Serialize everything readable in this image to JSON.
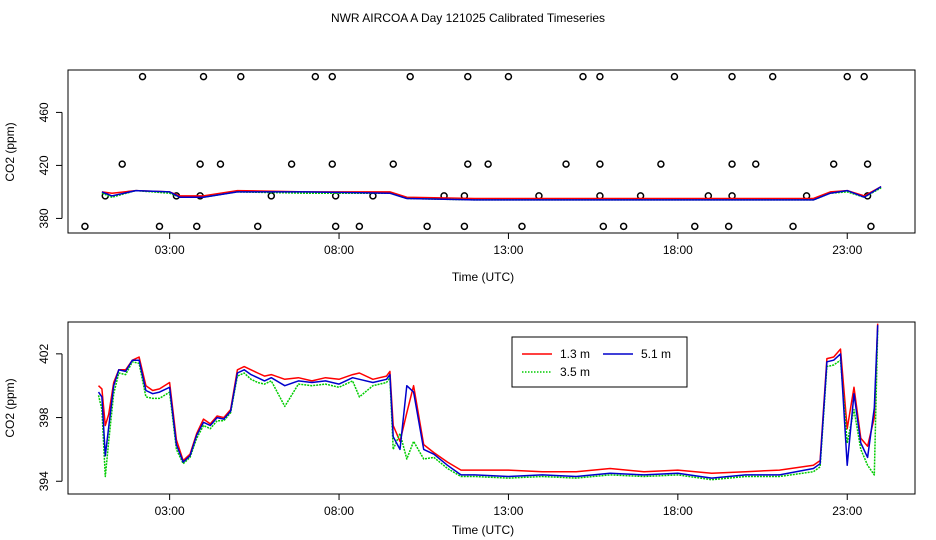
{
  "page_title": "NWR AIRCOA A  Day 121025  Calibrated Timeseries",
  "chart_data": [
    {
      "type": "line",
      "panel": "top",
      "xlabel": "Time (UTC)",
      "ylabel": "CO2 (ppm)",
      "xlim": [
        0.0,
        25.0
      ],
      "ylim": [
        369,
        492
      ],
      "xticks": [
        3,
        8,
        13,
        18,
        23
      ],
      "xtick_labels": [
        "03:00",
        "08:00",
        "13:00",
        "18:00",
        "23:00"
      ],
      "yticks": [
        380,
        420,
        460
      ],
      "ytick_labels": [
        "380",
        "420",
        "460"
      ],
      "series": [
        {
          "name": "1.3 m",
          "color": "#ff0000",
          "x": [
            1.0,
            1.3,
            2.0,
            3.0,
            3.3,
            4.0,
            5.0,
            7.0,
            9.5,
            10.0,
            12.0,
            14.0,
            16.0,
            18.0,
            20.0,
            22.0,
            22.5,
            23.0,
            23.5,
            24.0
          ],
          "y": [
            400,
            399,
            401,
            400,
            397,
            397,
            401,
            400,
            400,
            396,
            395,
            395,
            395,
            395,
            395,
            395,
            400,
            401,
            397,
            404
          ]
        },
        {
          "name": "3.5 m",
          "color": "#00cc00",
          "x": [
            1.0,
            1.3,
            2.0,
            3.0,
            3.3,
            4.0,
            5.0,
            7.0,
            9.5,
            10.0,
            12.0,
            14.0,
            16.0,
            18.0,
            20.0,
            22.0,
            22.5,
            23.0,
            23.5,
            24.0
          ],
          "y": [
            399,
            396,
            401,
            399,
            396,
            396,
            400,
            399,
            399,
            395,
            394,
            394,
            394,
            394,
            394,
            394,
            399,
            400,
            396,
            403
          ]
        },
        {
          "name": "5.1 m",
          "color": "#0000cc",
          "x": [
            1.0,
            1.3,
            2.0,
            3.0,
            3.3,
            4.0,
            5.0,
            7.0,
            9.5,
            10.0,
            12.0,
            14.0,
            16.0,
            18.0,
            20.0,
            22.0,
            22.5,
            23.0,
            23.5,
            24.0
          ],
          "y": [
            400,
            397,
            401,
            400,
            396,
            396,
            400,
            400,
            399,
            395,
            394,
            394,
            394,
            394,
            394,
            394,
            399,
            401,
            396,
            404
          ]
        }
      ],
      "cal_points": [
        {
          "x": 2.2,
          "y": 487
        },
        {
          "x": 4.0,
          "y": 487
        },
        {
          "x": 5.1,
          "y": 487
        },
        {
          "x": 7.3,
          "y": 487
        },
        {
          "x": 7.8,
          "y": 487
        },
        {
          "x": 10.1,
          "y": 487
        },
        {
          "x": 11.8,
          "y": 487
        },
        {
          "x": 13.0,
          "y": 487
        },
        {
          "x": 15.2,
          "y": 487
        },
        {
          "x": 15.7,
          "y": 487
        },
        {
          "x": 17.9,
          "y": 487
        },
        {
          "x": 19.6,
          "y": 487
        },
        {
          "x": 20.8,
          "y": 487
        },
        {
          "x": 23.0,
          "y": 487
        },
        {
          "x": 23.5,
          "y": 487
        },
        {
          "x": 1.6,
          "y": 421
        },
        {
          "x": 3.9,
          "y": 421
        },
        {
          "x": 4.5,
          "y": 421
        },
        {
          "x": 6.6,
          "y": 421
        },
        {
          "x": 7.8,
          "y": 421
        },
        {
          "x": 9.6,
          "y": 421
        },
        {
          "x": 11.8,
          "y": 421
        },
        {
          "x": 12.4,
          "y": 421
        },
        {
          "x": 14.7,
          "y": 421
        },
        {
          "x": 15.7,
          "y": 421
        },
        {
          "x": 17.5,
          "y": 421
        },
        {
          "x": 19.6,
          "y": 421
        },
        {
          "x": 20.3,
          "y": 421
        },
        {
          "x": 22.6,
          "y": 421
        },
        {
          "x": 23.6,
          "y": 421
        },
        {
          "x": 1.1,
          "y": 397
        },
        {
          "x": 3.2,
          "y": 397
        },
        {
          "x": 3.9,
          "y": 397
        },
        {
          "x": 6.0,
          "y": 397
        },
        {
          "x": 7.9,
          "y": 397
        },
        {
          "x": 9.0,
          "y": 397
        },
        {
          "x": 11.1,
          "y": 397
        },
        {
          "x": 11.7,
          "y": 397
        },
        {
          "x": 13.9,
          "y": 397
        },
        {
          "x": 15.7,
          "y": 397
        },
        {
          "x": 16.9,
          "y": 397
        },
        {
          "x": 18.9,
          "y": 397
        },
        {
          "x": 19.6,
          "y": 397
        },
        {
          "x": 21.8,
          "y": 397
        },
        {
          "x": 23.6,
          "y": 397
        },
        {
          "x": 0.5,
          "y": 374
        },
        {
          "x": 2.7,
          "y": 374
        },
        {
          "x": 3.8,
          "y": 374
        },
        {
          "x": 5.6,
          "y": 374
        },
        {
          "x": 7.9,
          "y": 374
        },
        {
          "x": 8.6,
          "y": 374
        },
        {
          "x": 10.6,
          "y": 374
        },
        {
          "x": 11.7,
          "y": 374
        },
        {
          "x": 13.4,
          "y": 374
        },
        {
          "x": 15.8,
          "y": 374
        },
        {
          "x": 16.4,
          "y": 374
        },
        {
          "x": 18.5,
          "y": 374
        },
        {
          "x": 19.5,
          "y": 374
        },
        {
          "x": 21.4,
          "y": 374
        },
        {
          "x": 23.7,
          "y": 374
        }
      ]
    },
    {
      "type": "line",
      "panel": "bottom",
      "xlabel": "Time (UTC)",
      "ylabel": "CO2 (ppm)",
      "xlim": [
        0.0,
        25.0
      ],
      "ylim": [
        393.2,
        404.0
      ],
      "xticks": [
        3,
        8,
        13,
        18,
        23
      ],
      "xtick_labels": [
        "03:00",
        "08:00",
        "13:00",
        "18:00",
        "23:00"
      ],
      "yticks": [
        394,
        398,
        402
      ],
      "ytick_labels": [
        "394",
        "398",
        "402"
      ],
      "legend_position": "top-center",
      "series": [
        {
          "name": "1.3 m",
          "color": "#ff0000",
          "x": [
            0.9,
            1.0,
            1.1,
            1.2,
            1.35,
            1.5,
            1.7,
            1.9,
            2.1,
            2.3,
            2.5,
            2.7,
            3.0,
            3.2,
            3.4,
            3.6,
            3.8,
            4.0,
            4.2,
            4.4,
            4.6,
            4.8,
            5.0,
            5.2,
            5.4,
            5.6,
            5.8,
            6.0,
            6.4,
            6.8,
            7.2,
            7.6,
            8.0,
            8.4,
            8.6,
            9.0,
            9.4,
            9.5,
            9.6,
            9.8,
            10.0,
            10.2,
            10.5,
            10.8,
            11.2,
            11.6,
            12.0,
            13.0,
            14.0,
            15.0,
            16.0,
            17.0,
            18.0,
            19.0,
            20.0,
            21.0,
            22.0,
            22.2,
            22.4,
            22.6,
            22.8,
            23.0,
            23.2,
            23.4,
            23.6,
            23.8,
            23.9
          ],
          "y": [
            400.0,
            399.8,
            397.5,
            398.2,
            400.2,
            401.0,
            401.0,
            401.6,
            401.8,
            400.0,
            399.7,
            399.8,
            400.2,
            396.6,
            395.3,
            395.7,
            397.0,
            397.9,
            397.6,
            398.1,
            398.0,
            398.5,
            401.0,
            401.2,
            401.0,
            400.8,
            400.6,
            400.7,
            400.4,
            400.5,
            400.3,
            400.5,
            400.4,
            400.7,
            400.8,
            400.4,
            400.6,
            400.9,
            397.5,
            396.5,
            398.3,
            400.0,
            396.3,
            395.8,
            395.2,
            394.7,
            394.7,
            394.7,
            394.6,
            394.6,
            394.8,
            394.6,
            394.7,
            394.5,
            394.6,
            394.7,
            395.0,
            395.3,
            401.7,
            401.8,
            402.3,
            397.3,
            399.9,
            396.7,
            396.2,
            398.0,
            403.9
          ]
        },
        {
          "name": "3.5 m",
          "color": "#00cc00",
          "x": [
            0.9,
            1.0,
            1.1,
            1.2,
            1.35,
            1.5,
            1.7,
            1.9,
            2.1,
            2.3,
            2.5,
            2.7,
            3.0,
            3.2,
            3.4,
            3.6,
            3.8,
            4.0,
            4.2,
            4.4,
            4.6,
            4.8,
            5.0,
            5.2,
            5.4,
            5.6,
            5.8,
            6.0,
            6.4,
            6.8,
            7.2,
            7.6,
            8.0,
            8.4,
            8.6,
            9.0,
            9.4,
            9.5,
            9.6,
            9.8,
            10.0,
            10.2,
            10.5,
            10.8,
            11.2,
            11.6,
            12.0,
            13.0,
            14.0,
            15.0,
            16.0,
            17.0,
            18.0,
            19.0,
            20.0,
            21.0,
            22.0,
            22.2,
            22.4,
            22.6,
            22.8,
            23.0,
            23.2,
            23.4,
            23.6,
            23.8,
            23.9
          ],
          "y": [
            399.4,
            398.5,
            394.3,
            396.5,
            399.5,
            400.8,
            400.7,
            401.5,
            401.4,
            399.3,
            399.2,
            399.2,
            399.6,
            396.0,
            395.1,
            395.5,
            396.7,
            397.5,
            397.3,
            397.8,
            397.8,
            398.3,
            400.6,
            400.8,
            400.4,
            400.2,
            400.1,
            400.3,
            398.7,
            400.1,
            400.0,
            400.1,
            399.9,
            400.3,
            399.3,
            400.0,
            400.2,
            400.5,
            396.0,
            397.0,
            395.4,
            396.5,
            395.4,
            395.5,
            394.8,
            394.3,
            394.3,
            394.2,
            394.3,
            394.2,
            394.4,
            394.3,
            394.4,
            394.1,
            394.3,
            394.3,
            394.6,
            394.9,
            401.2,
            401.3,
            401.6,
            396.4,
            398.5,
            396.0,
            395.0,
            394.4,
            403.5
          ]
        },
        {
          "name": "5.1 m",
          "color": "#0000cc",
          "x": [
            0.9,
            1.0,
            1.1,
            1.2,
            1.35,
            1.5,
            1.7,
            1.9,
            2.1,
            2.3,
            2.5,
            2.7,
            3.0,
            3.2,
            3.4,
            3.6,
            3.8,
            4.0,
            4.2,
            4.4,
            4.6,
            4.8,
            5.0,
            5.2,
            5.4,
            5.6,
            5.8,
            6.0,
            6.4,
            6.8,
            7.2,
            7.6,
            8.0,
            8.4,
            8.6,
            9.0,
            9.4,
            9.5,
            9.6,
            9.8,
            10.0,
            10.2,
            10.5,
            10.8,
            11.2,
            11.6,
            12.0,
            13.0,
            14.0,
            15.0,
            16.0,
            17.0,
            18.0,
            19.0,
            20.0,
            21.0,
            22.0,
            22.2,
            22.4,
            22.6,
            22.8,
            23.0,
            23.2,
            23.4,
            23.6,
            23.8,
            23.9
          ],
          "y": [
            399.6,
            399.3,
            395.6,
            397.4,
            400.0,
            401.0,
            400.9,
            401.6,
            401.6,
            399.7,
            399.5,
            399.6,
            399.9,
            396.3,
            395.2,
            395.6,
            396.9,
            397.7,
            397.5,
            398.0,
            397.9,
            398.4,
            400.8,
            401.0,
            400.7,
            400.5,
            400.3,
            400.5,
            400.0,
            400.3,
            400.2,
            400.3,
            400.1,
            400.5,
            400.4,
            400.2,
            400.4,
            400.7,
            396.8,
            396.0,
            400.0,
            399.6,
            396.0,
            395.7,
            395.0,
            394.4,
            394.4,
            394.3,
            394.4,
            394.3,
            394.5,
            394.4,
            394.5,
            394.2,
            394.4,
            394.4,
            394.8,
            395.1,
            401.5,
            401.6,
            402.0,
            395.0,
            399.5,
            396.4,
            395.5,
            398.6,
            403.8
          ]
        }
      ]
    }
  ]
}
